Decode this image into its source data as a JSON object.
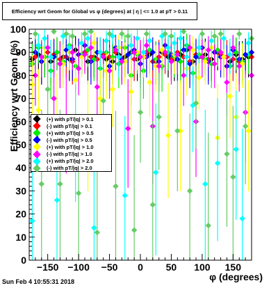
{
  "title": "Efficiency wrt Geom for Global vs φ (degrees) at | η | <= 1.0 at pT > 0.11",
  "timestamp": "Sun Feb  4 10:55:31 2018",
  "chart_data": {
    "type": "scatter",
    "xlabel": "φ (degrees)",
    "ylabel": "Efficiency wrt Geom (%)",
    "xlim": [
      -180,
      180
    ],
    "ylim": [
      0,
      100
    ],
    "x_ticks": [
      -150,
      -100,
      -50,
      0,
      50,
      100,
      150
    ],
    "y_ticks": [
      0,
      10,
      20,
      30,
      40,
      50,
      60,
      70,
      80,
      90,
      100
    ],
    "legend_position": "middle-left",
    "series": [
      {
        "name": "(+) with pT/|q| > 0.1",
        "color": "#000000",
        "x": [
          -175,
          -165,
          -155,
          -145,
          -135,
          -125,
          -115,
          -105,
          -95,
          -85,
          -75,
          -65,
          -55,
          -45,
          -35,
          -25,
          -15,
          -5,
          5,
          15,
          25,
          35,
          45,
          55,
          65,
          75,
          85,
          95,
          105,
          115,
          125,
          135,
          145,
          155,
          165,
          175
        ],
        "values": [
          87,
          89,
          88,
          86,
          90,
          88,
          87,
          91,
          89,
          86,
          88,
          90,
          87,
          86,
          89,
          88,
          90,
          87,
          88,
          89,
          86,
          90,
          88,
          87,
          89,
          91,
          86,
          88,
          89,
          87,
          90,
          88,
          86,
          89,
          87,
          88
        ]
      },
      {
        "name": "(-) with pT/|q| > 0.1",
        "color": "#ff0000",
        "x": [
          -170,
          -160,
          -150,
          -140,
          -130,
          -120,
          -110,
          -100,
          -90,
          -80,
          -70,
          -60,
          -50,
          -40,
          -30,
          -20,
          -10,
          0,
          10,
          20,
          30,
          40,
          50,
          60,
          70,
          80,
          90,
          100,
          110,
          120,
          130,
          140,
          150,
          160,
          170,
          180
        ],
        "values": [
          88,
          86,
          90,
          89,
          87,
          88,
          86,
          89,
          90,
          88,
          87,
          89,
          88,
          90,
          86,
          89,
          87,
          88,
          90,
          86,
          88,
          89,
          87,
          90,
          88,
          86,
          89,
          88,
          87,
          90,
          89,
          88,
          87,
          86,
          89,
          88
        ]
      },
      {
        "name": "(+) with pT/|q| > 0.5",
        "color": "#00ee00",
        "x": [
          -175,
          -165,
          -155,
          -145,
          -135,
          -125,
          -115,
          -105,
          -95,
          -85,
          -75,
          -65,
          -55,
          -45,
          -35,
          -25,
          -15,
          -5,
          5,
          15,
          25,
          35,
          45,
          55,
          65,
          75,
          85,
          95,
          105,
          115,
          125,
          135,
          145,
          155,
          165,
          175
        ],
        "values": [
          85,
          92,
          88,
          82,
          90,
          86,
          93,
          84,
          89,
          91,
          87,
          83,
          90,
          88,
          85,
          92,
          80,
          89,
          82,
          91,
          87,
          84,
          90,
          88,
          86,
          93,
          81,
          89,
          87,
          85,
          91,
          88,
          84,
          90,
          86,
          89
        ]
      },
      {
        "name": "(-) with pT/|q| > 0.5",
        "color": "#0000ff",
        "x": [
          -170,
          -160,
          -150,
          -140,
          -130,
          -120,
          -110,
          -100,
          -90,
          -80,
          -70,
          -60,
          -50,
          -40,
          -30,
          -20,
          -10,
          0,
          10,
          20,
          30,
          40,
          50,
          60,
          70,
          80,
          90,
          100,
          110,
          120,
          130,
          140,
          150,
          160,
          170,
          180
        ],
        "values": [
          90,
          86,
          92,
          88,
          85,
          91,
          87,
          89,
          93,
          86,
          90,
          88,
          84,
          92,
          87,
          89,
          91,
          85,
          88,
          90,
          86,
          93,
          89,
          87,
          91,
          85,
          88,
          92,
          86,
          90,
          88,
          84,
          91,
          87,
          89,
          90
        ]
      },
      {
        "name": "(+) with pT/|q| > 1.0",
        "color": "#ffff00",
        "x": [
          -175,
          -165,
          -155,
          -145,
          -135,
          -125,
          -115,
          -105,
          -95,
          -85,
          -75,
          -65,
          -55,
          -45,
          -35,
          -25,
          -15,
          -5,
          5,
          15,
          25,
          35,
          45,
          55,
          65,
          75,
          85,
          95,
          105,
          115,
          125,
          135,
          145,
          155,
          165,
          175
        ],
        "values": [
          76,
          65,
          92,
          88,
          62,
          85,
          90,
          78,
          88,
          56,
          94,
          70,
          82,
          74,
          92,
          86,
          73,
          90,
          88,
          77,
          84,
          91,
          54,
          89,
          56,
          83,
          91,
          79,
          86,
          92,
          53,
          88,
          71,
          62,
          85,
          56
        ]
      },
      {
        "name": "(-) with pT/|q| > 1.0",
        "color": "#ff00ff",
        "x": [
          -170,
          -160,
          -150,
          -140,
          -130,
          -120,
          -110,
          -100,
          -90,
          -80,
          -70,
          -60,
          -50,
          -40,
          -30,
          -20,
          -10,
          0,
          10,
          20,
          30,
          40,
          50,
          60,
          70,
          80,
          90,
          100,
          110,
          120,
          130,
          140,
          150,
          160,
          170,
          180
        ],
        "values": [
          80,
          88,
          92,
          70,
          85,
          61,
          90,
          83,
          89,
          92,
          75,
          88,
          82,
          91,
          86,
          57,
          90,
          88,
          93,
          58,
          84,
          90,
          86,
          89,
          80,
          92,
          60,
          88,
          91,
          85,
          90,
          77,
          92,
          84,
          64,
          80
        ]
      },
      {
        "name": "(+) with pT/|q| > 2.0",
        "color": "#00ffff",
        "x": [
          -175,
          -165,
          -155,
          -145,
          -135,
          -125,
          -115,
          -105,
          -95,
          -85,
          -75,
          -65,
          -55,
          -45,
          -35,
          -25,
          -15,
          -5,
          5,
          15,
          25,
          35,
          45,
          55,
          65,
          75,
          85,
          95,
          105,
          115,
          125,
          135,
          145,
          155,
          165,
          175
        ],
        "values": [
          17,
          93,
          96,
          88,
          26,
          97,
          92,
          53,
          94,
          96,
          14,
          90,
          95,
          97,
          88,
          28,
          93,
          96,
          90,
          95,
          38,
          97,
          92,
          94,
          96,
          88,
          67,
          92,
          33,
          95,
          42,
          96,
          89,
          48,
          18,
          94
        ]
      },
      {
        "name": "(-) with pT/|q| > 2.0",
        "color": "#66cc66",
        "x": [
          -170,
          -160,
          -150,
          -140,
          -130,
          -120,
          -110,
          -100,
          -90,
          -80,
          -70,
          -60,
          -50,
          -40,
          -30,
          -20,
          -10,
          0,
          10,
          20,
          30,
          40,
          50,
          60,
          70,
          80,
          90,
          100,
          110,
          120,
          130,
          140,
          150,
          160,
          170,
          180
        ],
        "values": [
          98,
          33,
          74,
          99,
          33,
          98,
          97,
          29,
          98,
          99,
          12,
          69,
          98,
          32,
          98,
          97,
          13,
          64,
          98,
          24,
          62,
          98,
          97,
          56,
          99,
          30,
          68,
          98,
          15,
          97,
          98,
          46,
          36,
          98,
          58,
          96
        ]
      }
    ]
  }
}
